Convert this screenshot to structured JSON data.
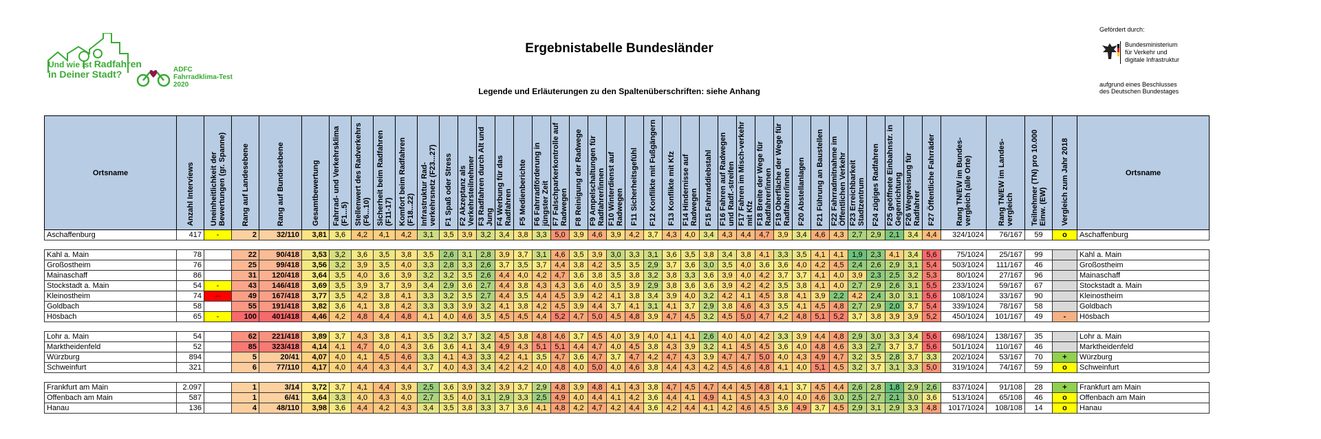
{
  "header": {
    "logo_slogan_line1": "Und wie ist",
    "logo_slogan_accent": "Radfahren",
    "logo_slogan_line2": "in Deiner Stadt?",
    "logo_brand_line1": "ADFC",
    "logo_brand_line2": "Fahrradklima-Test",
    "logo_brand_line3": "2020",
    "title": "Ergebnistabelle Bundesländer",
    "subtitle": "Legende und Erläuterungen zu den Spaltenüberschriften: siehe Anhang",
    "funded_by": "Gefördert durch:",
    "ministry_line1": "Bundesministerium",
    "ministry_line2": "für Verkehr und",
    "ministry_line3": "digitale Infrastruktur",
    "resolution_line1": "aufgrund eines Beschlusses",
    "resolution_line2": "des Deutschen Bundestages"
  },
  "colors": {
    "header_fill": "#b8cce4",
    "logo_green": "#3aaa35",
    "brand_heart": "#8b1a4a",
    "yellow_flag": "#ffff00",
    "red_flag": "#ff0000",
    "grey_flag": "#d9d9d9",
    "green_flag": "#92d050",
    "orange_flag": "#f4b183"
  },
  "table": {
    "columns": [
      "Ortsname",
      "Anzahl Interviews",
      "Uneinheitlichkeit der Bewertungen (gr. Spanne)",
      "Rang auf Landesebene",
      "Rang auf Bundesebene",
      "Gesamtbewertung",
      "Fahrrad- und Verkehrsklima (F1...5)",
      "Stellenwert des Radverkehrs (F6...10)",
      "Sicherheit beim Radfahren (F11-17)",
      "Komfort beim Radfahren (F18...22)",
      "Infrastruktur Rad-verkehrsnetz (F23...27)",
      "F1 Spaß oder Stress",
      "F2 Akzeptanz als Verkehrsteilnehmer",
      "F3 Radfahren durch Alt und Jung",
      "F4 Werbung für das Radfahren",
      "F5 Medienberichte",
      "F6 Fahrradförderung in jüngster Zeit",
      "F7 Falschparkerkontrolle auf Radwegen",
      "F8 Reinigung der Radwege",
      "F9 Ampelschaltungen für Radfahrer/innen",
      "F10 Winterdienst auf Radwegen",
      "F11 Sicherheitsgefühl",
      "F12 Konflikte mit Fußgängern",
      "F13 Konflikte mit Kfz",
      "F14 Hindernisse auf Radwegen",
      "F15 Fahrraddiebstahl",
      "F16 Fahren auf Radwegen und Radf.-streifen",
      "F17 Fahren im Misch-verkehr mit Kfz",
      "F18 Breite der Wege für Radfahrer/innen",
      "F19 Oberfläche der Wege für Radfahrer/innen",
      "F20 Abstellanlagen",
      "F21 Führung an Baustellen",
      "F22 Fahrradmitnahme im Öffentlichen Verkehr",
      "F23 Erreichbarkeit Stadtzentrum",
      "F24 zügiges Radfahren",
      "F25 geöffnete Einbahnstr. in Gegenrichtung",
      "F26 Wegweisung für Radfahrer",
      "F27 Öffentliche Fahrräder",
      "Rang TN/EW im Bundes-vergleich (alle Orte)",
      "Rang TN/EW im Landes-vergleich",
      "Teilnehmer (TN) pro 10.000 Einw. (EW)",
      "Vergleich zum Jahr 2018",
      "Ortsname"
    ],
    "groups": [
      [
        {
          "name": "Aschaffenburg",
          "interviews": "417",
          "spread": "-",
          "rank_state": "2",
          "rank_federal": "32/110",
          "overall": "3,81",
          "scores": [
            "3,6",
            "4,2",
            "4,1",
            "4,2",
            "3,1",
            "3,5",
            "3,9",
            "3,2",
            "3,4",
            "3,8",
            "3,3",
            "5,0",
            "3,9",
            "4,6",
            "3,9",
            "4,2",
            "3,7",
            "4,3",
            "4,0",
            "3,4",
            "4,3",
            "4,4",
            "4,7",
            "3,9",
            "3,4",
            "4,6",
            "4,3",
            "2,7",
            "2,9",
            "2,1",
            "3,4",
            "4,4"
          ],
          "rank_tn_fed": "324/1024",
          "rank_tn_state": "76/167",
          "tn": "59",
          "trend": "o"
        }
      ],
      [
        {
          "name": "Kahl a. Main",
          "interviews": "78",
          "spread": "",
          "rank_state": "22",
          "rank_federal": "90/418",
          "overall": "3,53",
          "scores": [
            "3,2",
            "3,6",
            "3,5",
            "3,8",
            "3,5",
            "2,6",
            "3,1",
            "2,8",
            "3,9",
            "3,7",
            "3,1",
            "4,6",
            "3,5",
            "3,9",
            "3,0",
            "3,3",
            "3,1",
            "3,6",
            "3,5",
            "3,8",
            "3,4",
            "3,8",
            "4,1",
            "3,3",
            "3,5",
            "4,1",
            "4,1",
            "1,9",
            "2,3",
            "4,1",
            "3,4",
            "5,6"
          ],
          "rank_tn_fed": "75/1024",
          "rank_tn_state": "25/167",
          "tn": "99",
          "trend": ""
        },
        {
          "name": "Großostheim",
          "interviews": "76",
          "spread": "",
          "rank_state": "25",
          "rank_federal": "99/418",
          "overall": "3,56",
          "scores": [
            "3,2",
            "3,9",
            "3,5",
            "4,0",
            "3,3",
            "2,8",
            "3,3",
            "2,6",
            "3,7",
            "3,5",
            "3,7",
            "4,4",
            "3,8",
            "4,2",
            "3,5",
            "3,5",
            "2,9",
            "3,7",
            "3,6",
            "3,0",
            "3,5",
            "4,0",
            "3,6",
            "3,6",
            "4,0",
            "4,2",
            "4,5",
            "2,4",
            "2,6",
            "2,9",
            "3,1",
            "5,4"
          ],
          "rank_tn_fed": "503/1024",
          "rank_tn_state": "111/167",
          "tn": "46",
          "trend": ""
        },
        {
          "name": "Mainaschaff",
          "interviews": "86",
          "spread": "",
          "rank_state": "31",
          "rank_federal": "120/418",
          "overall": "3,64",
          "scores": [
            "3,5",
            "4,0",
            "3,6",
            "3,9",
            "3,2",
            "3,2",
            "3,5",
            "2,6",
            "4,4",
            "4,0",
            "4,2",
            "4,7",
            "3,6",
            "3,8",
            "3,5",
            "3,8",
            "3,2",
            "3,8",
            "3,3",
            "3,6",
            "3,9",
            "4,0",
            "4,2",
            "3,7",
            "3,7",
            "4,1",
            "4,0",
            "3,9",
            "2,3",
            "2,5",
            "3,2",
            "5,3"
          ],
          "rank_tn_fed": "80/1024",
          "rank_tn_state": "27/167",
          "tn": "96",
          "trend": ""
        },
        {
          "name": "Stockstadt a. Main",
          "interviews": "54",
          "spread": "-",
          "rank_state": "43",
          "rank_federal": "146/418",
          "overall": "3,69",
          "scores": [
            "3,5",
            "3,9",
            "3,7",
            "3,9",
            "3,4",
            "2,9",
            "3,6",
            "2,7",
            "4,4",
            "3,8",
            "4,3",
            "4,3",
            "3,6",
            "4,0",
            "3,5",
            "3,9",
            "2,9",
            "3,8",
            "3,6",
            "3,6",
            "3,9",
            "4,2",
            "4,2",
            "3,5",
            "3,8",
            "4,1",
            "4,0",
            "2,7",
            "2,9",
            "2,6",
            "3,1",
            "5,5"
          ],
          "rank_tn_fed": "233/1024",
          "rank_tn_state": "59/167",
          "tn": "67",
          "trend": ""
        },
        {
          "name": "Kleinostheim",
          "interviews": "74",
          "spread": "--",
          "rank_state": "49",
          "rank_federal": "167/418",
          "overall": "3,77",
          "scores": [
            "3,5",
            "4,2",
            "3,8",
            "4,1",
            "3,3",
            "3,2",
            "3,5",
            "2,7",
            "4,4",
            "3,5",
            "4,4",
            "4,5",
            "3,9",
            "4,2",
            "4,1",
            "3,8",
            "3,4",
            "3,9",
            "4,0",
            "3,2",
            "4,2",
            "4,1",
            "4,5",
            "3,8",
            "4,1",
            "3,9",
            "2,2",
            "4,2",
            "2,4",
            "3,0",
            "3,1",
            "5,6"
          ],
          "rank_tn_fed": "108/1024",
          "rank_tn_state": "33/167",
          "tn": "90",
          "trend": ""
        },
        {
          "name": "Goldbach",
          "interviews": "58",
          "spread": "",
          "rank_state": "55",
          "rank_federal": "191/418",
          "overall": "3,82",
          "scores": [
            "3,6",
            "4,1",
            "3,8",
            "4,2",
            "3,3",
            "3,3",
            "3,9",
            "3,2",
            "4,1",
            "3,8",
            "4,2",
            "4,5",
            "3,9",
            "4,4",
            "3,7",
            "4,1",
            "3,1",
            "4,1",
            "3,7",
            "2,9",
            "3,8",
            "4,6",
            "4,3",
            "3,5",
            "4,1",
            "4,5",
            "4,8",
            "2,7",
            "2,9",
            "2,0",
            "3,7",
            "5,4"
          ],
          "rank_tn_fed": "339/1024",
          "rank_tn_state": "78/167",
          "tn": "58",
          "trend": ""
        },
        {
          "name": "Hösbach",
          "interviews": "65",
          "spread": "-",
          "rank_state": "100",
          "rank_federal": "401/418",
          "overall": "4,46",
          "scores": [
            "4,2",
            "4,8",
            "4,4",
            "4,8",
            "4,1",
            "4,0",
            "4,6",
            "3,5",
            "4,5",
            "4,5",
            "4,4",
            "5,2",
            "4,7",
            "5,0",
            "4,5",
            "4,8",
            "3,9",
            "4,7",
            "4,5",
            "3,2",
            "4,5",
            "5,0",
            "4,7",
            "4,2",
            "4,8",
            "5,1",
            "5,2",
            "3,7",
            "3,8",
            "3,9",
            "3,9",
            "5,2"
          ],
          "rank_tn_fed": "450/1024",
          "rank_tn_state": "101/167",
          "tn": "49",
          "trend": "-"
        }
      ],
      [
        {
          "name": "Lohr a. Main",
          "interviews": "54",
          "spread": "",
          "rank_state": "62",
          "rank_federal": "221/418",
          "overall": "3,89",
          "scores": [
            "3,7",
            "4,3",
            "3,8",
            "4,1",
            "3,5",
            "3,2",
            "3,7",
            "3,2",
            "4,5",
            "3,8",
            "4,8",
            "4,6",
            "3,7",
            "4,5",
            "4,0",
            "3,9",
            "4,0",
            "4,1",
            "4,1",
            "2,6",
            "4,0",
            "4,0",
            "4,2",
            "3,3",
            "3,9",
            "4,4",
            "4,8",
            "2,9",
            "3,0",
            "3,3",
            "3,4",
            "5,6"
          ],
          "rank_tn_fed": "698/1024",
          "rank_tn_state": "138/167",
          "tn": "35",
          "trend": ""
        },
        {
          "name": "Marktheidenfeld",
          "interviews": "52",
          "spread": "",
          "rank_state": "85",
          "rank_federal": "323/418",
          "overall": "4,14",
          "scores": [
            "4,1",
            "4,7",
            "4,0",
            "4,3",
            "3,6",
            "3,6",
            "4,1",
            "3,4",
            "4,9",
            "4,3",
            "5,1",
            "5,1",
            "4,4",
            "4,7",
            "4,0",
            "4,5",
            "3,8",
            "4,3",
            "3,9",
            "3,2",
            "4,1",
            "4,5",
            "4,5",
            "3,6",
            "4,0",
            "4,8",
            "4,6",
            "3,3",
            "2,7",
            "3,7",
            "3,7",
            "5,6"
          ],
          "rank_tn_fed": "501/1024",
          "rank_tn_state": "110/167",
          "tn": "46",
          "trend": ""
        },
        {
          "name": "Würzburg",
          "interviews": "894",
          "spread": "",
          "rank_state": "5",
          "rank_federal": "20/41",
          "overall": "4,07",
          "scores": [
            "4,0",
            "4,1",
            "4,5",
            "4,6",
            "3,3",
            "4,1",
            "4,3",
            "3,3",
            "4,2",
            "4,1",
            "3,5",
            "4,7",
            "3,6",
            "4,7",
            "3,7",
            "4,7",
            "4,2",
            "4,7",
            "4,3",
            "3,9",
            "4,7",
            "4,7",
            "5,0",
            "4,0",
            "4,3",
            "4,9",
            "4,7",
            "3,2",
            "3,5",
            "2,8",
            "3,7",
            "3,3"
          ],
          "rank_tn_fed": "202/1024",
          "rank_tn_state": "53/167",
          "tn": "70",
          "trend": "+"
        },
        {
          "name": "Schweinfurt",
          "interviews": "321",
          "spread": "",
          "rank_state": "6",
          "rank_federal": "77/110",
          "overall": "4,17",
          "scores": [
            "4,0",
            "4,4",
            "4,3",
            "4,4",
            "3,7",
            "4,0",
            "4,3",
            "3,4",
            "4,2",
            "4,2",
            "4,0",
            "4,8",
            "4,0",
            "5,0",
            "4,0",
            "4,6",
            "3,8",
            "4,4",
            "4,3",
            "4,2",
            "4,5",
            "4,6",
            "4,8",
            "4,1",
            "4,0",
            "5,1",
            "4,5",
            "3,2",
            "3,7",
            "3,1",
            "3,3",
            "5,0"
          ],
          "rank_tn_fed": "319/1024",
          "rank_tn_state": "74/167",
          "tn": "59",
          "trend": "o"
        }
      ],
      [
        {
          "name": "Frankfurt am Main",
          "interviews": "2.097",
          "spread": "",
          "rank_state": "1",
          "rank_federal": "3/14",
          "overall": "3,72",
          "scores": [
            "3,7",
            "4,1",
            "4,4",
            "3,9",
            "2,5",
            "3,6",
            "3,9",
            "3,2",
            "3,9",
            "3,7",
            "2,9",
            "4,8",
            "3,9",
            "4,8",
            "4,1",
            "4,3",
            "3,8",
            "4,7",
            "4,5",
            "4,7",
            "4,4",
            "4,5",
            "4,8",
            "4,1",
            "3,7",
            "4,5",
            "4,4",
            "2,6",
            "2,8",
            "1,8",
            "2,9",
            "2,6"
          ],
          "rank_tn_fed": "837/1024",
          "rank_tn_state": "91/108",
          "tn": "28",
          "trend": "+"
        },
        {
          "name": "Offenbach am Main",
          "interviews": "587",
          "spread": "",
          "rank_state": "1",
          "rank_federal": "6/41",
          "overall": "3,64",
          "scores": [
            "3,3",
            "4,0",
            "4,3",
            "4,0",
            "2,7",
            "3,5",
            "4,0",
            "3,1",
            "2,9",
            "3,3",
            "2,5",
            "4,9",
            "4,0",
            "4,4",
            "4,1",
            "4,2",
            "3,6",
            "4,4",
            "4,1",
            "4,9",
            "4,1",
            "4,5",
            "4,3",
            "4,0",
            "4,0",
            "4,6",
            "3,0",
            "2,5",
            "2,7",
            "2,1",
            "3,0",
            "3,6"
          ],
          "rank_tn_fed": "513/1024",
          "rank_tn_state": "65/108",
          "tn": "46",
          "trend": "o"
        },
        {
          "name": "Hanau",
          "interviews": "136",
          "spread": "",
          "rank_state": "4",
          "rank_federal": "48/110",
          "overall": "3,98",
          "scores": [
            "3,6",
            "4,4",
            "4,2",
            "4,3",
            "3,4",
            "3,5",
            "3,8",
            "3,3",
            "3,7",
            "3,6",
            "4,1",
            "4,8",
            "4,2",
            "4,7",
            "4,2",
            "4,4",
            "3,6",
            "4,2",
            "4,4",
            "4,1",
            "4,2",
            "4,6",
            "4,5",
            "3,6",
            "4,9",
            "3,7",
            "4,5",
            "2,9",
            "3,1",
            "2,9",
            "3,3",
            "4,8"
          ],
          "rank_tn_fed": "1017/1024",
          "rank_tn_state": "108/108",
          "tn": "14",
          "trend": "o"
        }
      ]
    ]
  }
}
